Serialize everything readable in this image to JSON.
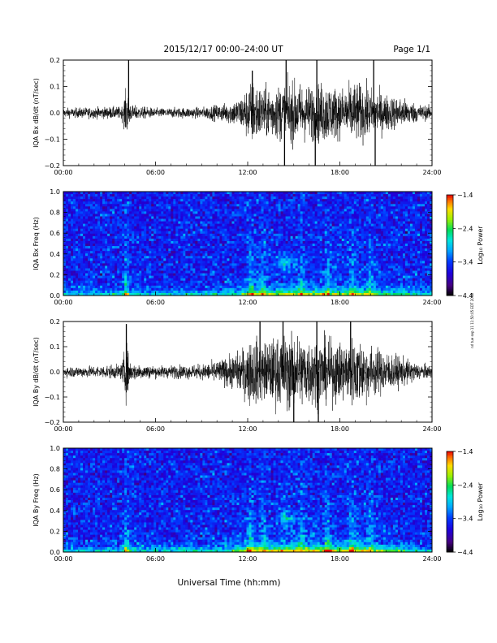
{
  "header": {
    "title": "2015/12/17  00:00–24:00 UT",
    "page": "Page 1/1"
  },
  "footer": {
    "xlabel": "Universal Time (hh:mm)",
    "side_note": "nrl tue sep 11 11:50:05 EDT 2018"
  },
  "x_ticks": [
    "00:00",
    "06:00",
    "12:00",
    "18:00",
    "24:00"
  ],
  "chart_data": [
    {
      "type": "line",
      "ylabel": "IQA Bx dB/dt (nT/sec)",
      "xlim": [
        0,
        24
      ],
      "ylim": [
        -0.2,
        0.2
      ],
      "yticks": [
        "0.2",
        "0.1",
        "0.0",
        "−0.1",
        "−0.2"
      ],
      "envelope": {
        "hours": [
          0,
          2,
          3.8,
          4.1,
          4.4,
          6,
          9,
          10.5,
          11.5,
          12.3,
          13,
          14,
          15,
          16,
          17,
          18,
          19,
          20,
          21,
          22,
          23,
          24
        ],
        "amplitude": [
          0.015,
          0.018,
          0.02,
          0.08,
          0.025,
          0.015,
          0.018,
          0.03,
          0.05,
          0.11,
          0.08,
          0.09,
          0.1,
          0.09,
          0.1,
          0.08,
          0.1,
          0.08,
          0.06,
          0.05,
          0.03,
          0.02
        ]
      },
      "spikes": [
        {
          "hour": 4.25,
          "peak": 0.2
        },
        {
          "hour": 12.3,
          "peak": 0.16
        },
        {
          "hour": 14.4,
          "peak": -0.2
        },
        {
          "hour": 14.5,
          "peak": 0.2
        },
        {
          "hour": 16.4,
          "peak": -0.2
        },
        {
          "hour": 16.5,
          "peak": 0.2
        },
        {
          "hour": 20.2,
          "peak": 0.2
        },
        {
          "hour": 20.3,
          "peak": -0.2
        }
      ]
    },
    {
      "type": "heatmap",
      "ylabel": "IQA Bx Freq (Hz)",
      "xlim": [
        0,
        24
      ],
      "ylim": [
        0,
        1.0
      ],
      "yticks": [
        "1.0",
        "0.8",
        "0.6",
        "0.4",
        "0.2",
        "0.0"
      ],
      "colorbar": {
        "label": "Log₁₀ Power",
        "ticks": [
          "−1.4",
          "−2.4",
          "−3.4",
          "−4.4"
        ],
        "range": [
          -4.4,
          -1.4
        ]
      },
      "bright_columns_hours": [
        4.1,
        12.2,
        13.0,
        15.5,
        17.2,
        18.8,
        20.0
      ],
      "blob": {
        "hour": 14.5,
        "freq": 0.33
      }
    },
    {
      "type": "line",
      "ylabel": "IQA By dB/dt (nT/sec)",
      "xlim": [
        0,
        24
      ],
      "ylim": [
        -0.2,
        0.2
      ],
      "yticks": [
        "0.2",
        "0.1",
        "0.0",
        "−0.1",
        "−0.2"
      ],
      "envelope": {
        "hours": [
          0,
          2,
          3.8,
          4.1,
          4.4,
          6,
          9,
          10.5,
          11.5,
          12.3,
          13,
          14,
          15,
          16,
          17,
          18,
          19,
          20,
          21,
          22,
          23,
          24
        ],
        "amplitude": [
          0.018,
          0.02,
          0.025,
          0.1,
          0.03,
          0.02,
          0.025,
          0.045,
          0.07,
          0.12,
          0.1,
          0.12,
          0.13,
          0.12,
          0.11,
          0.1,
          0.12,
          0.09,
          0.07,
          0.05,
          0.03,
          0.02
        ]
      },
      "spikes": [
        {
          "hour": 4.1,
          "peak": 0.19
        },
        {
          "hour": 12.8,
          "peak": 0.2
        },
        {
          "hour": 14.3,
          "peak": 0.2
        },
        {
          "hour": 15.0,
          "peak": -0.2
        },
        {
          "hour": 16.5,
          "peak": 0.2
        },
        {
          "hour": 16.6,
          "peak": -0.2
        },
        {
          "hour": 18.7,
          "peak": 0.2
        }
      ]
    },
    {
      "type": "heatmap",
      "ylabel": "IQA By Freq (Hz)",
      "xlim": [
        0,
        24
      ],
      "ylim": [
        0,
        1.0
      ],
      "yticks": [
        "1.0",
        "0.8",
        "0.6",
        "0.4",
        "0.2",
        "0.0"
      ],
      "colorbar": {
        "label": "Log₁₀ Power",
        "ticks": [
          "−1.4",
          "−2.4",
          "−3.4",
          "−4.4"
        ],
        "range": [
          -4.4,
          -1.4
        ]
      },
      "bright_columns_hours": [
        4.1,
        12.2,
        13.0,
        15.5,
        17.2,
        18.8,
        20.0
      ],
      "blob": {
        "hour": 14.5,
        "freq": 0.33
      }
    }
  ]
}
